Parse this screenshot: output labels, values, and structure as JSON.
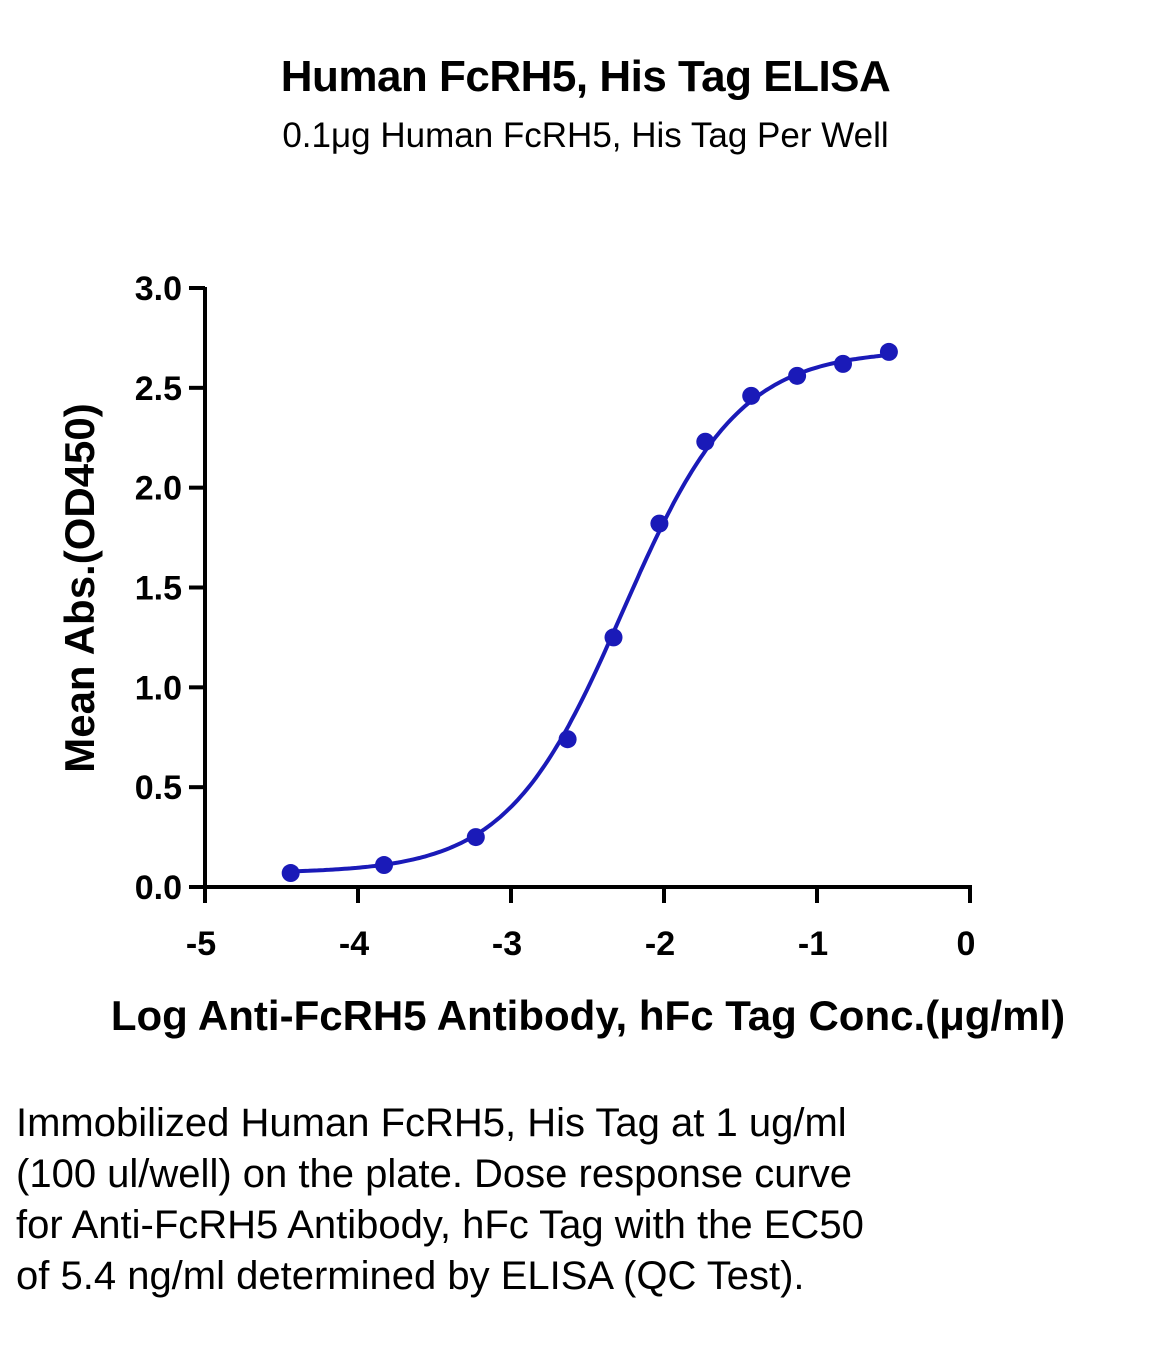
{
  "chart_data": {
    "type": "scatter",
    "title": "Human FcRH5, His Tag ELISA",
    "subtitle": "0.1μg Human FcRH5, His Tag Per Well",
    "xlabel": "Log Anti-FcRH5 Antibody, hFc Tag Conc.(μg/ml)",
    "ylabel": "Mean Abs.(OD450)",
    "xlim": [
      -5,
      0
    ],
    "ylim": [
      0,
      3.0
    ],
    "x_ticks": [
      "-5",
      "-4",
      "-3",
      "-2",
      "-1",
      "0"
    ],
    "y_ticks": [
      "0.0",
      "0.5",
      "1.0",
      "1.5",
      "2.0",
      "2.5",
      "3.0"
    ],
    "grid": false,
    "color": "#1a1ab8",
    "series": [
      {
        "x": [
          -4.44,
          -3.83,
          -3.23,
          -2.63,
          -2.33,
          -2.03,
          -1.73,
          -1.43,
          -1.13,
          -0.83,
          -0.53
        ],
        "y": [
          0.07,
          0.11,
          0.25,
          0.74,
          1.25,
          1.82,
          2.23,
          2.46,
          2.56,
          2.62,
          2.68
        ],
        "fit": "4PL"
      }
    ]
  },
  "caption": "Immobilized Human FcRH5, His Tag at 1 ug/ml (100 ul/well) on the plate. Dose response curve for Anti-FcRH5 Antibody, hFc Tag with the EC50 of 5.4 ng/ml determined by ELISA (QC Test)."
}
